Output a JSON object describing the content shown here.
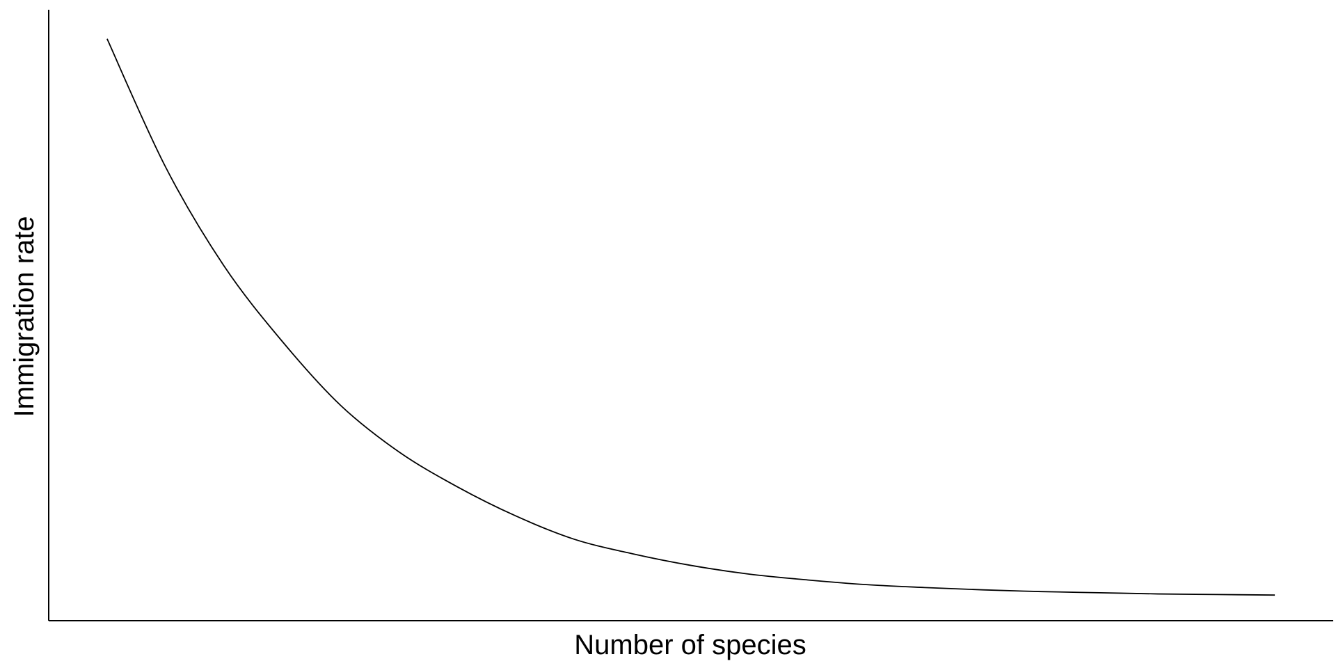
{
  "chart_data": {
    "type": "line",
    "title": "",
    "xlabel": "Number of species",
    "ylabel": "Immigration rate",
    "xlim": [
      0,
      22
    ],
    "ylim": [
      0,
      1.05
    ],
    "grid": false,
    "legend": "none",
    "series": [
      {
        "values": [
          {
            "x": 1,
            "y": 1.0
          },
          {
            "x": 2,
            "y": 0.78
          },
          {
            "x": 3,
            "y": 0.61
          },
          {
            "x": 4,
            "y": 0.48
          },
          {
            "x": 5,
            "y": 0.37
          },
          {
            "x": 6,
            "y": 0.29
          },
          {
            "x": 7,
            "y": 0.23
          },
          {
            "x": 8,
            "y": 0.18
          },
          {
            "x": 9,
            "y": 0.14
          },
          {
            "x": 10,
            "y": 0.115
          },
          {
            "x": 11,
            "y": 0.095
          },
          {
            "x": 12,
            "y": 0.08
          },
          {
            "x": 13,
            "y": 0.07
          },
          {
            "x": 14,
            "y": 0.062
          },
          {
            "x": 15,
            "y": 0.057
          },
          {
            "x": 16,
            "y": 0.053
          },
          {
            "x": 17,
            "y": 0.05
          },
          {
            "x": 18,
            "y": 0.048
          },
          {
            "x": 19,
            "y": 0.046
          },
          {
            "x": 20,
            "y": 0.045
          },
          {
            "x": 21,
            "y": 0.044
          }
        ]
      }
    ],
    "colors": {
      "line": "#000000",
      "axis": "#000000",
      "background": "#ffffff"
    }
  }
}
